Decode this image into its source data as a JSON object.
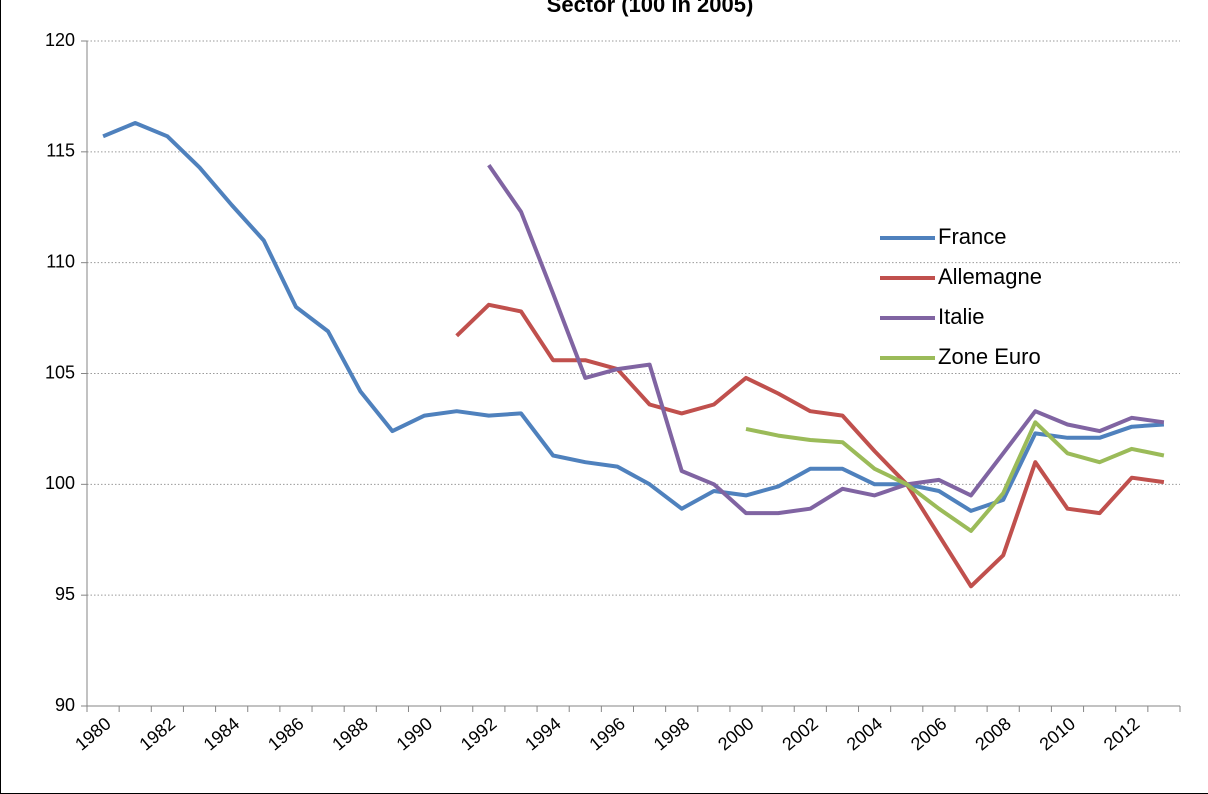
{
  "chart_data": {
    "type": "line",
    "title": "Sector (100 in 2005)",
    "categories": [
      "1980",
      null,
      "1982",
      null,
      "1984",
      null,
      "1986",
      null,
      "1988",
      null,
      "1990",
      null,
      "1992",
      null,
      "1994",
      null,
      "1996",
      null,
      "1998",
      null,
      "2000",
      null,
      "2002",
      null,
      "2004",
      null,
      "2006",
      null,
      "2008",
      null,
      "2010",
      null,
      "2012",
      null
    ],
    "series": [
      {
        "name": "France",
        "color": "#4F81BD",
        "values": [
          115.7,
          116.3,
          115.7,
          114.3,
          112.6,
          111.0,
          108.0,
          106.9,
          104.2,
          102.4,
          103.1,
          103.3,
          103.1,
          103.2,
          101.3,
          101.0,
          100.8,
          100.0,
          98.9,
          99.7,
          99.5,
          99.9,
          100.7,
          100.7,
          100.0,
          100.0,
          99.7,
          98.8,
          99.3,
          102.3,
          102.1,
          102.1,
          102.6,
          102.7
        ]
      },
      {
        "name": "Allemagne",
        "color": "#C0504D",
        "values": [
          null,
          null,
          null,
          null,
          null,
          null,
          null,
          null,
          null,
          null,
          null,
          106.7,
          108.1,
          107.8,
          105.6,
          105.6,
          105.2,
          103.6,
          103.2,
          103.6,
          104.8,
          104.1,
          103.3,
          103.1,
          101.5,
          100.0,
          97.7,
          95.4,
          96.8,
          101.0,
          98.9,
          98.7,
          100.3,
          100.1
        ]
      },
      {
        "name": "Italie",
        "color": "#8064A2",
        "values": [
          null,
          null,
          null,
          null,
          null,
          null,
          null,
          null,
          null,
          null,
          null,
          null,
          114.4,
          112.3,
          108.6,
          104.8,
          105.2,
          105.4,
          100.6,
          100.0,
          98.7,
          98.7,
          98.9,
          99.8,
          99.5,
          100.0,
          100.2,
          99.5,
          101.4,
          103.3,
          102.7,
          102.4,
          103.0,
          102.8
        ]
      },
      {
        "name": "Zone Euro",
        "color": "#9BBB59",
        "values": [
          null,
          null,
          null,
          null,
          null,
          null,
          null,
          null,
          null,
          null,
          null,
          null,
          null,
          null,
          null,
          null,
          null,
          null,
          null,
          null,
          102.5,
          102.2,
          102.0,
          101.9,
          100.7,
          100.0,
          98.9,
          97.9,
          99.6,
          102.8,
          101.4,
          101.0,
          101.6,
          101.3
        ]
      }
    ],
    "ylim": [
      90,
      120
    ],
    "yticks": [
      90,
      95,
      100,
      105,
      110,
      115,
      120
    ],
    "grid": true,
    "legend": "right"
  }
}
